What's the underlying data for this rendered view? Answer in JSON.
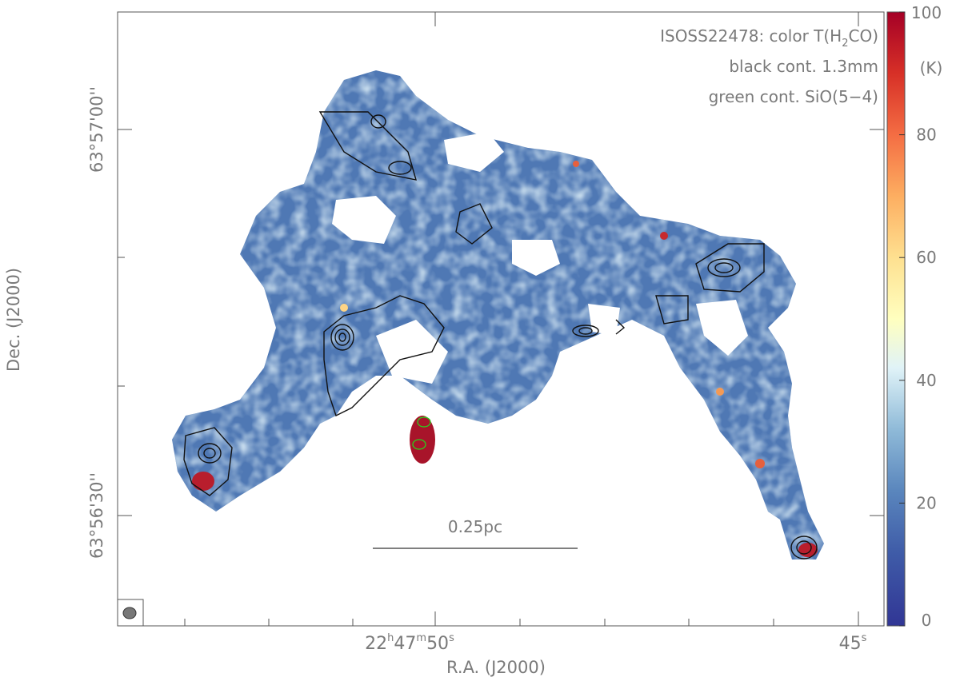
{
  "chart_data": {
    "type": "heatmap",
    "title_lines": [
      "ISOSS22478: color T(H$_2$CO)",
      "black cont. 1.3mm",
      "green cont. SiO(5−4)"
    ],
    "title_main": "ISOSS22478: color T(H",
    "title_sub": "2",
    "title_tail": "CO)",
    "legend_line2": "black cont. 1.3mm",
    "legend_line3": "green cont. SiO(5−4)",
    "xlabel": "R.A. (J2000)",
    "ylabel": "Dec. (J2000)",
    "x_ticks": [
      {
        "h": "22",
        "m": "47",
        "s": "50",
        "value_s": 50
      },
      {
        "h": "",
        "m": "",
        "s": "45",
        "value_s": 45
      }
    ],
    "x_tick_label_45": "45",
    "y_ticks": [
      {
        "label": "63°57'00''",
        "value_arcsec": 0
      },
      {
        "label": "63°56'30''",
        "value_arcsec": -30
      }
    ],
    "colorbar": {
      "label": "(K)",
      "range": [
        0,
        100
      ],
      "ticks": [
        "0",
        "20",
        "40",
        "60",
        "80",
        "100"
      ],
      "colormap": "RdYlBu_r"
    },
    "scalebar_label": "0.25pc",
    "colors": {
      "cold": "#4f78b4",
      "mid": "#a9cbe2",
      "hot": "#a8142a",
      "contour_black": "#111111",
      "contour_green": "#28d01c"
    }
  }
}
